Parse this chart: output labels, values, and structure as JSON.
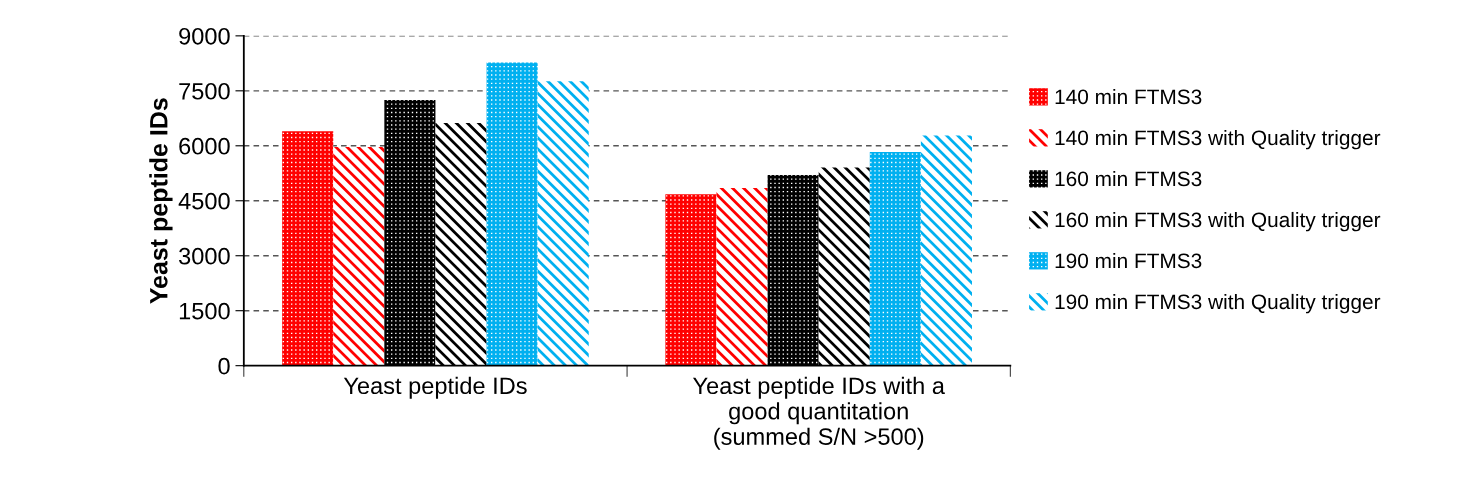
{
  "chart_data": {
    "type": "bar",
    "ylabel": "Yeast peptide IDs",
    "categories": [
      "Yeast peptide IDs",
      "Yeast peptide IDs with a\ngood quantitation\n(summed S/N >500)"
    ],
    "series": [
      {
        "name": "140 min FTMS3",
        "color": "#ff0000",
        "values": [
          6400,
          4680
        ]
      },
      {
        "name": "140 min FTMS3 with Quality trigger",
        "color": "#ff0000",
        "values": [
          5970,
          4850
        ]
      },
      {
        "name": "160 min FTMS3",
        "color": "#000000",
        "values": [
          7250,
          5200
        ]
      },
      {
        "name": "160 min FTMS3 with Quality trigger",
        "color": "#000000",
        "values": [
          6620,
          5410
        ]
      },
      {
        "name": "190 min FTMS3",
        "color": "#00b0f0",
        "values": [
          8270,
          5830
        ]
      },
      {
        "name": "190 min FTMS3 with Quality trigger",
        "color": "#00b0f0",
        "values": [
          7760,
          6280
        ]
      }
    ],
    "ylim": [
      0,
      9000
    ],
    "yticks": [
      0,
      1500,
      3000,
      4500,
      6000,
      7500,
      9000
    ],
    "grid": "y",
    "legend": "right"
  }
}
